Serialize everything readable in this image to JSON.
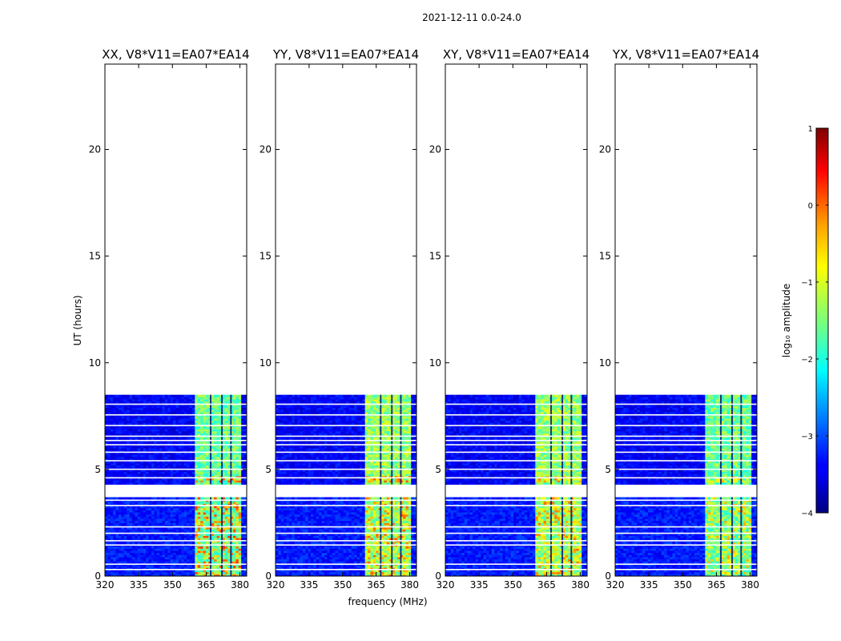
{
  "chart_data": {
    "type": "heatmap",
    "suptitle": "2021-12-11 0.0-24.0",
    "xlabel": "frequency (MHz)",
    "ylabel": "UT (hours)",
    "xlim": [
      320,
      383
    ],
    "ylim": [
      0,
      24
    ],
    "xticks": [
      320,
      335,
      350,
      365,
      380
    ],
    "yticks": [
      0,
      5,
      10,
      15,
      20
    ],
    "panels": [
      {
        "title": "XX, V8*V11=EA07*EA14",
        "band_level": -1.6,
        "hot_level": -0.3
      },
      {
        "title": "YY, V8*V11=EA07*EA14",
        "band_level": -1.4,
        "hot_level": -0.5
      },
      {
        "title": "XY, V8*V11=EA07*EA14",
        "band_level": -1.4,
        "hot_level": -0.6
      },
      {
        "title": "YX, V8*V11=EA07*EA14",
        "band_level": -1.6,
        "hot_level": -0.9
      }
    ],
    "data_coverage_hours": [
      [
        0,
        3.7
      ],
      [
        4.3,
        8.5
      ]
    ],
    "background_level": -3.4,
    "band_mhz": [
      360,
      380
    ],
    "gap_lines_hours": [
      0.3,
      0.55,
      1.45,
      1.65,
      2.0,
      2.3,
      3.3,
      3.55,
      4.6,
      5.0,
      5.4,
      5.8,
      6.15,
      6.35,
      6.55,
      7.05,
      7.55,
      8.05
    ],
    "band_gaps_mhz": [
      367,
      372,
      376
    ],
    "colorbar": {
      "label": "log₁₀ amplitude",
      "min": -4,
      "max": 1,
      "ticks": [
        "1",
        "0",
        "−1",
        "−2",
        "−3",
        "−4"
      ]
    }
  }
}
